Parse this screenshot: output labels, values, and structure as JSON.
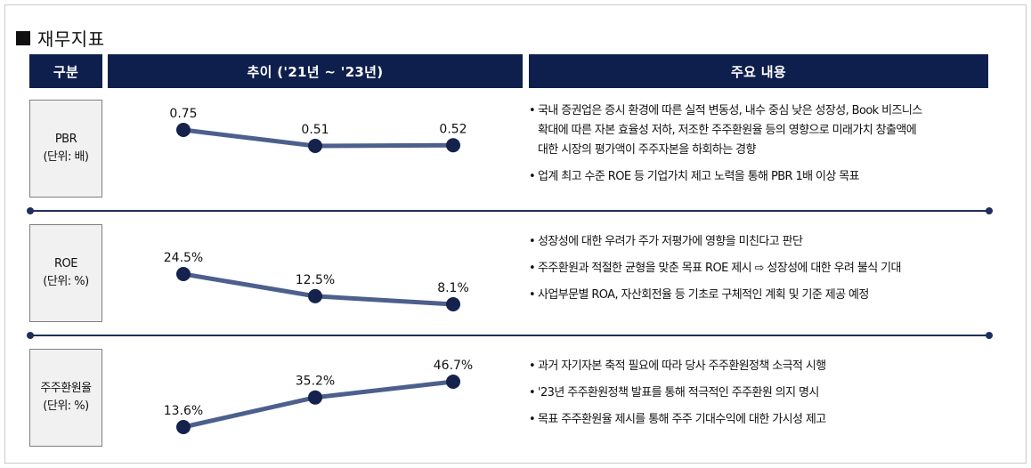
{
  "title": "재무지표",
  "headers": {
    "col1": "구분",
    "col2": "추이 ('21년 ~ '23년)",
    "col3": "주요 내용"
  },
  "colors": {
    "header_bg": "#0f1f4d",
    "line": "#4d5f8c",
    "marker": "#15224d"
  },
  "chart_data": [
    {
      "type": "line",
      "label_main": "PBR",
      "label_unit": "(단위: 배)",
      "values": [
        0.75,
        0.51,
        0.52
      ],
      "value_labels": [
        "0.75",
        "0.51",
        "0.52"
      ]
    },
    {
      "type": "line",
      "label_main": "ROE",
      "label_unit": "(단위: %)",
      "values": [
        24.5,
        12.5,
        8.1
      ],
      "value_labels": [
        "24.5%",
        "12.5%",
        "8.1%"
      ]
    },
    {
      "type": "line",
      "label_main": "주주환원율",
      "label_unit": "(단위: %)",
      "values": [
        13.6,
        35.2,
        46.7
      ],
      "value_labels": [
        "13.6%",
        "35.2%",
        "46.7%"
      ]
    }
  ],
  "rows": [
    {
      "bullets": [
        [
          "국내 증권업은 증시 환경에 따른 실적 변동성, 내수 중심 낮은 성장성, Book 비즈니스",
          "확대에 따른 자본 효율성 저하, 저조한  주주환원율 등의 영향으로 미래가치 창출액에",
          "대한 시장의 평가액이 주주자본을 하회하는 경향"
        ],
        [
          "업계 최고 수준 ROE 등 기업가치 제고 노력을 통해 PBR 1배 이상 목표"
        ]
      ]
    },
    {
      "bullets": [
        [
          "성장성에 대한 우려가 주가 저평가에 영향을 미친다고 판단"
        ],
        [
          "주주환원과 적절한 균형을 맞춘 목표 ROE 제시 ⇨ 성장성에 대한 우려 불식 기대"
        ],
        [
          "사업부문별 ROA, 자산회전율 등 기초로 구체적인 계획 및 기준 제공 예정"
        ]
      ]
    },
    {
      "bullets": [
        [
          "과거 자기자본 축적 필요에 따라 당사 주주환원정책 소극적 시행"
        ],
        [
          "'23년 주주환원정책 발표를 통해 적극적인 주주환원 의지 명시"
        ],
        [
          "목표 주주환원율 제시를 통해 주주 기대수익에 대한 가시성 제고"
        ]
      ]
    }
  ]
}
